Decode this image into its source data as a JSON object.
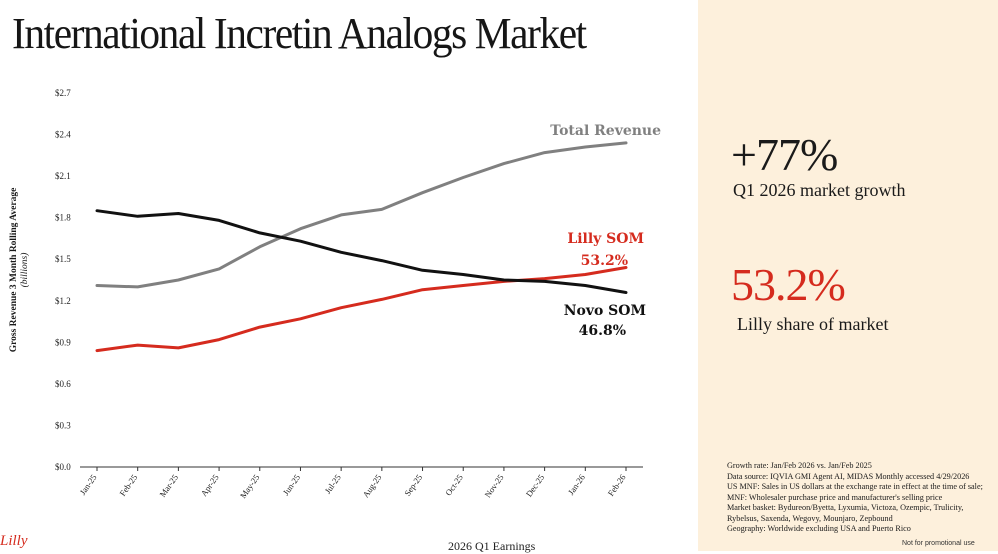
{
  "header": {
    "title": "International Incretin Analogs Market"
  },
  "stats": {
    "growth_value": "+77%",
    "growth_label": "Q1 2026 market growth",
    "share_value": "53.2%",
    "share_label": "Lilly share of market"
  },
  "notes": [
    "Growth rate: Jan/Feb 2026 vs. Jan/Feb 2025",
    "Data source: IQVIA GMI Agent AI, MIDAS Monthly accessed 4/29/2026",
    "US MNF: Sales in US dollars at the exchange rate in effect at the time of sale;",
    "MNF: Wholesaler purchase price and manufacturer's selling price",
    "Market basket: Bydureon/Byetta, Lyxumia, Victoza, Ozempic, Trulicity,",
    "Rybelsus, Saxenda, Wegovy, Mounjaro, Zepbound",
    "Geography: Worldwide excluding USA and Puerto Rico"
  ],
  "footer": {
    "event": "2026 Q1 Earnings",
    "disclaimer": "Not for promotional use",
    "logo_text": "Lilly"
  },
  "colors": {
    "lilly": "#d52b1e",
    "novo": "#111111",
    "total": "#808080",
    "panel": "#fdf0dc"
  },
  "chart_data": {
    "type": "line",
    "ylabel": "Gross Revenue 3 Month Rolling Average",
    "ylabel_sub": "(billions)",
    "ylim": [
      0,
      2.7
    ],
    "y_ticks": [
      "$0.0",
      "$0.3",
      "$0.6",
      "$0.9",
      "$1.2",
      "$1.5",
      "$1.8",
      "$2.1",
      "$2.4",
      "$2.7"
    ],
    "categories": [
      "Jan-25",
      "Feb-25",
      "Mar-25",
      "Apr-25",
      "May-25",
      "Jun-25",
      "Jul-25",
      "Aug-25",
      "Sep-25",
      "Oct-25",
      "Nov-25",
      "Dec-25",
      "Jan-26",
      "Feb-26"
    ],
    "grid": false,
    "series": [
      {
        "name": "Total Revenue",
        "color": "#808080",
        "values": [
          1.31,
          1.3,
          1.35,
          1.43,
          1.59,
          1.72,
          1.82,
          1.86,
          1.98,
          2.09,
          2.19,
          2.27,
          2.31,
          2.34
        ]
      },
      {
        "name": "Lilly SOM",
        "label_value": "53.2%",
        "color": "#d52b1e",
        "values": [
          0.84,
          0.88,
          0.86,
          0.92,
          1.01,
          1.07,
          1.15,
          1.21,
          1.28,
          1.31,
          1.34,
          1.36,
          1.39,
          1.44
        ]
      },
      {
        "name": "Novo SOM",
        "label_value": "46.8%",
        "color": "#111111",
        "values": [
          1.85,
          1.81,
          1.83,
          1.78,
          1.69,
          1.63,
          1.55,
          1.49,
          1.42,
          1.39,
          1.35,
          1.34,
          1.31,
          1.26
        ]
      }
    ]
  }
}
